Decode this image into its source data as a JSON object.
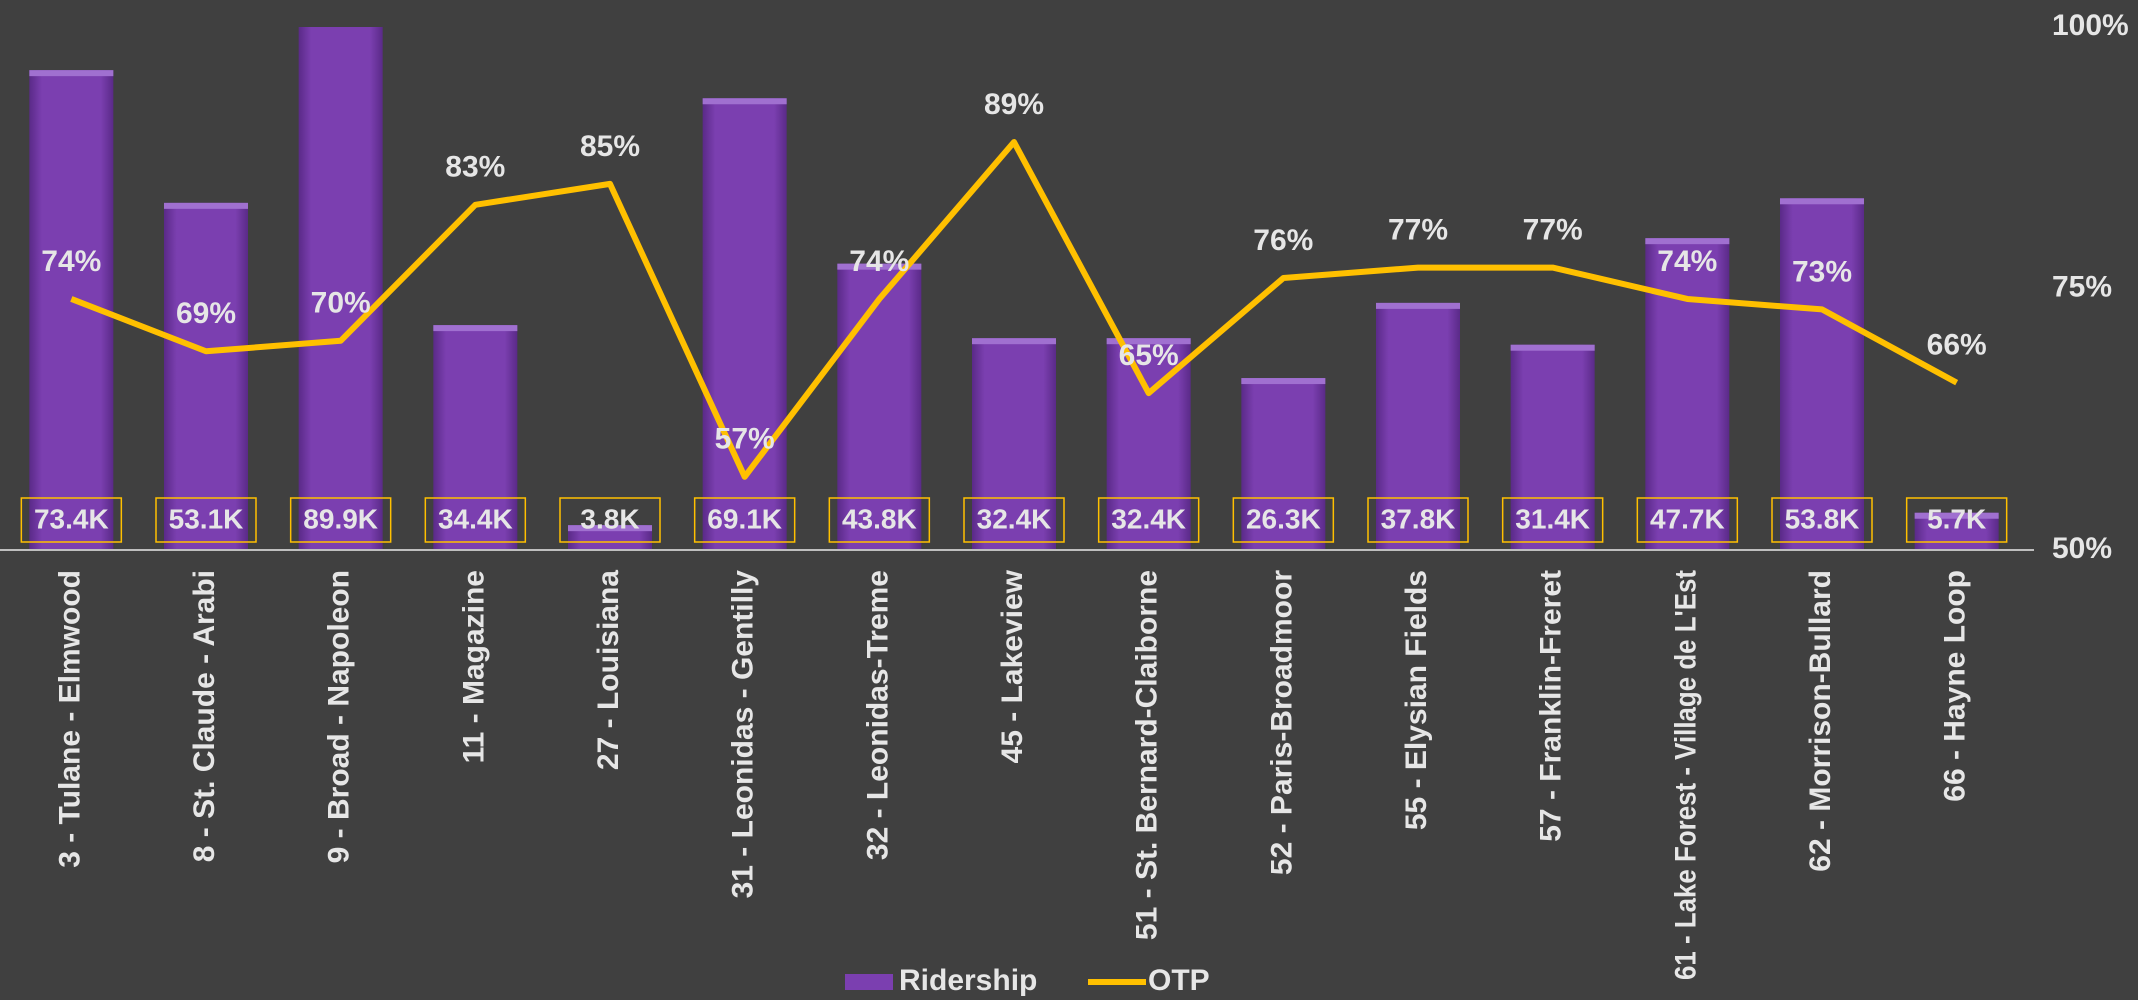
{
  "chart_data": {
    "type": "bar_line",
    "categories": [
      "3 - Tulane - Elmwood",
      "8 - St. Claude - Arabi",
      "9 - Broad - Napoleon",
      "11 - Magazine",
      "27 - Louisiana",
      "31 - Leonidas - Gentilly",
      "32 - Leonidas-Treme",
      "45 - Lakeview",
      "51 - St. Bernard-Claiborne",
      "52 - Paris-Broadmoor",
      "55 - Elysian Fields",
      "57 - Franklin-Freret",
      "61 - Lake Forest - Village de L'Est",
      "62 - Morrison-Bullard",
      "66 - Hayne Loop"
    ],
    "series": [
      {
        "name": "Ridership",
        "color": "#7b3fb0",
        "type": "bar",
        "values": [
          73400,
          53100,
          89900,
          34400,
          3800,
          69100,
          43800,
          32400,
          32400,
          26300,
          37800,
          31400,
          47700,
          53800,
          5700
        ],
        "value_labels": [
          "73.4K",
          "53.1K",
          "89.9K",
          "34.4K",
          "3.8K",
          "69.1K",
          "43.8K",
          "32.4K",
          "32.4K",
          "26.3K",
          "37.8K",
          "31.4K",
          "47.7K",
          "53.8K",
          "5.7K"
        ]
      },
      {
        "name": "OTP",
        "color": "#ffc000",
        "type": "line",
        "axis": "y2",
        "values": [
          74,
          69,
          70,
          83,
          85,
          57,
          74,
          89,
          65,
          76,
          77,
          77,
          74,
          73,
          66
        ],
        "value_labels": [
          "74%",
          "69%",
          "70%",
          "83%",
          "85%",
          "57%",
          "74%",
          "89%",
          "65%",
          "76%",
          "77%",
          "77%",
          "74%",
          "73%",
          "66%"
        ]
      }
    ],
    "ylim": [
      0,
      80000
    ],
    "y2lim": [
      50,
      100
    ],
    "y2ticks": [
      {
        "value": 50,
        "label": "50%"
      },
      {
        "value": 75,
        "label": "75%"
      },
      {
        "value": 100,
        "label": "100%"
      }
    ],
    "legend": "bottom"
  }
}
